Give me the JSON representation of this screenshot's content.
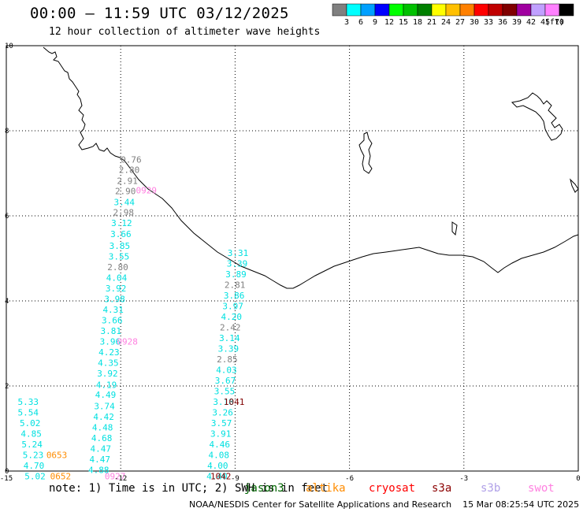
{
  "title": "00:00 – 11:59 UTC 03/12/2025",
  "subtitle": "12 hour collection of altimeter wave heights",
  "colorbar": {
    "unit": "(ft)",
    "labels": [
      "3",
      "6",
      "9",
      "12",
      "15",
      "18",
      "21",
      "24",
      "27",
      "30",
      "33",
      "36",
      "39",
      "42",
      "45",
      "70"
    ],
    "colors": [
      "#808080",
      "#00ffff",
      "#00a0ff",
      "#0000ff",
      "#00ff00",
      "#00c000",
      "#008000",
      "#ffff00",
      "#ffc000",
      "#ff8000",
      "#ff0000",
      "#c00000",
      "#800000",
      "#a000a0",
      "#c0a0ff",
      "#ff80ff",
      "#000000"
    ]
  },
  "axes": {
    "x_ticks": [
      "-15",
      "-12",
      "-9",
      "-6",
      "-3",
      "0"
    ],
    "y_ticks": [
      "0",
      "2",
      "4",
      "6",
      "8",
      "10"
    ],
    "x_range": [
      -15,
      0
    ],
    "y_range": [
      0,
      10
    ]
  },
  "footer_note": "note: 1) Time is in UTC; 2) SWH is in feet",
  "satellites": [
    {
      "name": "jason3",
      "color": "#006400"
    },
    {
      "name": "altika",
      "color": "#ff8c00"
    },
    {
      "name": "cryosat",
      "color": "#ff0000"
    },
    {
      "name": "s3a",
      "color": "#8b0000"
    },
    {
      "name": "s3b",
      "color": "#b0a0e8"
    },
    {
      "name": "swot",
      "color": "#ff80e0"
    }
  ],
  "credit": "NOAA/NESDIS Center for Satellite Applications and Research",
  "timestamp": "15 Mar 08:25:54 UTC 2025",
  "observations": [
    {
      "t": "0.76",
      "lon": -12.0,
      "lat": 7.32,
      "c": "#808080"
    },
    {
      "t": "2.80",
      "lon": -12.05,
      "lat": 7.08,
      "c": "#808080"
    },
    {
      "t": "2.91",
      "lon": -12.1,
      "lat": 6.82,
      "c": "#808080"
    },
    {
      "t": "2.90",
      "lon": -12.15,
      "lat": 6.58,
      "c": "#808080"
    },
    {
      "t": "2.98",
      "lon": -12.2,
      "lat": 6.08,
      "c": "#808080"
    },
    {
      "t": "3.44",
      "lon": -12.18,
      "lat": 6.32,
      "c": "#00e0e0"
    },
    {
      "t": "3.12",
      "lon": -12.25,
      "lat": 5.83,
      "c": "#00e0e0"
    },
    {
      "t": "3.66",
      "lon": -12.27,
      "lat": 5.57,
      "c": "#00e0e0"
    },
    {
      "t": "3.85",
      "lon": -12.3,
      "lat": 5.3,
      "c": "#00e0e0"
    },
    {
      "t": "3.55",
      "lon": -12.32,
      "lat": 5.05,
      "c": "#00e0e0"
    },
    {
      "t": "2.80",
      "lon": -12.35,
      "lat": 4.8,
      "c": "#808080"
    },
    {
      "t": "4.04",
      "lon": -12.38,
      "lat": 4.55,
      "c": "#00e0e0"
    },
    {
      "t": "3.92",
      "lon": -12.4,
      "lat": 4.3,
      "c": "#00e0e0"
    },
    {
      "t": "3.98",
      "lon": -12.43,
      "lat": 4.05,
      "c": "#00e0e0"
    },
    {
      "t": "4.31",
      "lon": -12.47,
      "lat": 3.8,
      "c": "#00e0e0"
    },
    {
      "t": "3.66",
      "lon": -12.5,
      "lat": 3.55,
      "c": "#00e0e0"
    },
    {
      "t": "3.81",
      "lon": -12.53,
      "lat": 3.3,
      "c": "#00e0e0"
    },
    {
      "t": "3.96",
      "lon": -12.55,
      "lat": 3.05,
      "c": "#00e0e0"
    },
    {
      "t": "4.23",
      "lon": -12.58,
      "lat": 2.8,
      "c": "#00e0e0"
    },
    {
      "t": "4.35",
      "lon": -12.6,
      "lat": 2.55,
      "c": "#00e0e0"
    },
    {
      "t": "3.92",
      "lon": -12.62,
      "lat": 2.3,
      "c": "#00e0e0"
    },
    {
      "t": "4.19",
      "lon": -12.65,
      "lat": 2.03,
      "c": "#00e0e0"
    },
    {
      "t": "4.49",
      "lon": -12.67,
      "lat": 1.8,
      "c": "#00e0e0"
    },
    {
      "t": "3.74",
      "lon": -12.7,
      "lat": 1.53,
      "c": "#00e0e0"
    },
    {
      "t": "4.42",
      "lon": -12.72,
      "lat": 1.28,
      "c": "#00e0e0"
    },
    {
      "t": "4.48",
      "lon": -12.75,
      "lat": 1.03,
      "c": "#00e0e0"
    },
    {
      "t": "4.68",
      "lon": -12.77,
      "lat": 0.78,
      "c": "#00e0e0"
    },
    {
      "t": "4.47",
      "lon": -12.8,
      "lat": 0.53,
      "c": "#00e0e0"
    },
    {
      "t": "4.47",
      "lon": -12.82,
      "lat": 0.28,
      "c": "#00e0e0"
    },
    {
      "t": "4.88",
      "lon": -12.85,
      "lat": 0.03,
      "c": "#00e0e0"
    },
    {
      "t": "5.33",
      "lon": -14.7,
      "lat": 1.63,
      "c": "#00e0e0"
    },
    {
      "t": "5.54",
      "lon": -14.7,
      "lat": 1.38,
      "c": "#00e0e0"
    },
    {
      "t": "5.02",
      "lon": -14.65,
      "lat": 1.13,
      "c": "#00e0e0"
    },
    {
      "t": "4.85",
      "lon": -14.62,
      "lat": 0.88,
      "c": "#00e0e0"
    },
    {
      "t": "5.24",
      "lon": -14.6,
      "lat": 0.63,
      "c": "#00e0e0"
    },
    {
      "t": "5.23",
      "lon": -14.57,
      "lat": 0.38,
      "c": "#00e0e0"
    },
    {
      "t": "4.70",
      "lon": -14.55,
      "lat": 0.13,
      "c": "#00e0e0"
    },
    {
      "t": "5.02",
      "lon": -14.52,
      "lat": -0.12,
      "c": "#00e0e0"
    },
    {
      "t": "0653",
      "lon": -13.95,
      "lat": 0.38,
      "c": "#ff8c00"
    },
    {
      "t": "0652",
      "lon": -13.85,
      "lat": -0.12,
      "c": "#ff8c00"
    },
    {
      "t": "0927",
      "lon": -12.42,
      "lat": -0.12,
      "c": "#ff80e0"
    },
    {
      "t": "0928",
      "lon": -12.1,
      "lat": 3.05,
      "c": "#ff80e0"
    },
    {
      "t": "0929",
      "lon": -11.6,
      "lat": 6.6,
      "c": "#ff80e0"
    },
    {
      "t": "3.31",
      "lon": -9.2,
      "lat": 5.13,
      "c": "#00e0e0"
    },
    {
      "t": "3.39",
      "lon": -9.22,
      "lat": 4.88,
      "c": "#00e0e0"
    },
    {
      "t": "3.89",
      "lon": -9.25,
      "lat": 4.63,
      "c": "#00e0e0"
    },
    {
      "t": "2.81",
      "lon": -9.28,
      "lat": 4.38,
      "c": "#808080"
    },
    {
      "t": "3.86",
      "lon": -9.3,
      "lat": 4.13,
      "c": "#00e0e0"
    },
    {
      "t": "3.97",
      "lon": -9.33,
      "lat": 3.88,
      "c": "#00e0e0"
    },
    {
      "t": "4.20",
      "lon": -9.37,
      "lat": 3.63,
      "c": "#00e0e0"
    },
    {
      "t": "2.42",
      "lon": -9.4,
      "lat": 3.38,
      "c": "#808080"
    },
    {
      "t": "3.14",
      "lon": -9.42,
      "lat": 3.13,
      "c": "#00e0e0"
    },
    {
      "t": "3.39",
      "lon": -9.45,
      "lat": 2.88,
      "c": "#00e0e0"
    },
    {
      "t": "2.85",
      "lon": -9.48,
      "lat": 2.63,
      "c": "#808080"
    },
    {
      "t": "4.03",
      "lon": -9.5,
      "lat": 2.38,
      "c": "#00e0e0"
    },
    {
      "t": "3.67",
      "lon": -9.53,
      "lat": 2.13,
      "c": "#00e0e0"
    },
    {
      "t": "3.55",
      "lon": -9.55,
      "lat": 1.88,
      "c": "#00e0e0"
    },
    {
      "t": "3.18",
      "lon": -9.58,
      "lat": 1.63,
      "c": "#00e0e0"
    },
    {
      "t": "3.26",
      "lon": -9.6,
      "lat": 1.38,
      "c": "#00e0e0"
    },
    {
      "t": "3.57",
      "lon": -9.63,
      "lat": 1.13,
      "c": "#00e0e0"
    },
    {
      "t": "3.91",
      "lon": -9.65,
      "lat": 0.88,
      "c": "#00e0e0"
    },
    {
      "t": "4.46",
      "lon": -9.68,
      "lat": 0.63,
      "c": "#00e0e0"
    },
    {
      "t": "4.08",
      "lon": -9.7,
      "lat": 0.38,
      "c": "#00e0e0"
    },
    {
      "t": "4.00",
      "lon": -9.73,
      "lat": 0.13,
      "c": "#00e0e0"
    },
    {
      "t": "4.40",
      "lon": -9.75,
      "lat": -0.12,
      "c": "#00e0e0"
    },
    {
      "t": "1041",
      "lon": -9.3,
      "lat": 1.63,
      "c": "#800000"
    },
    {
      "t": "1042",
      "lon": -9.65,
      "lat": -0.12,
      "c": "#800000"
    }
  ]
}
